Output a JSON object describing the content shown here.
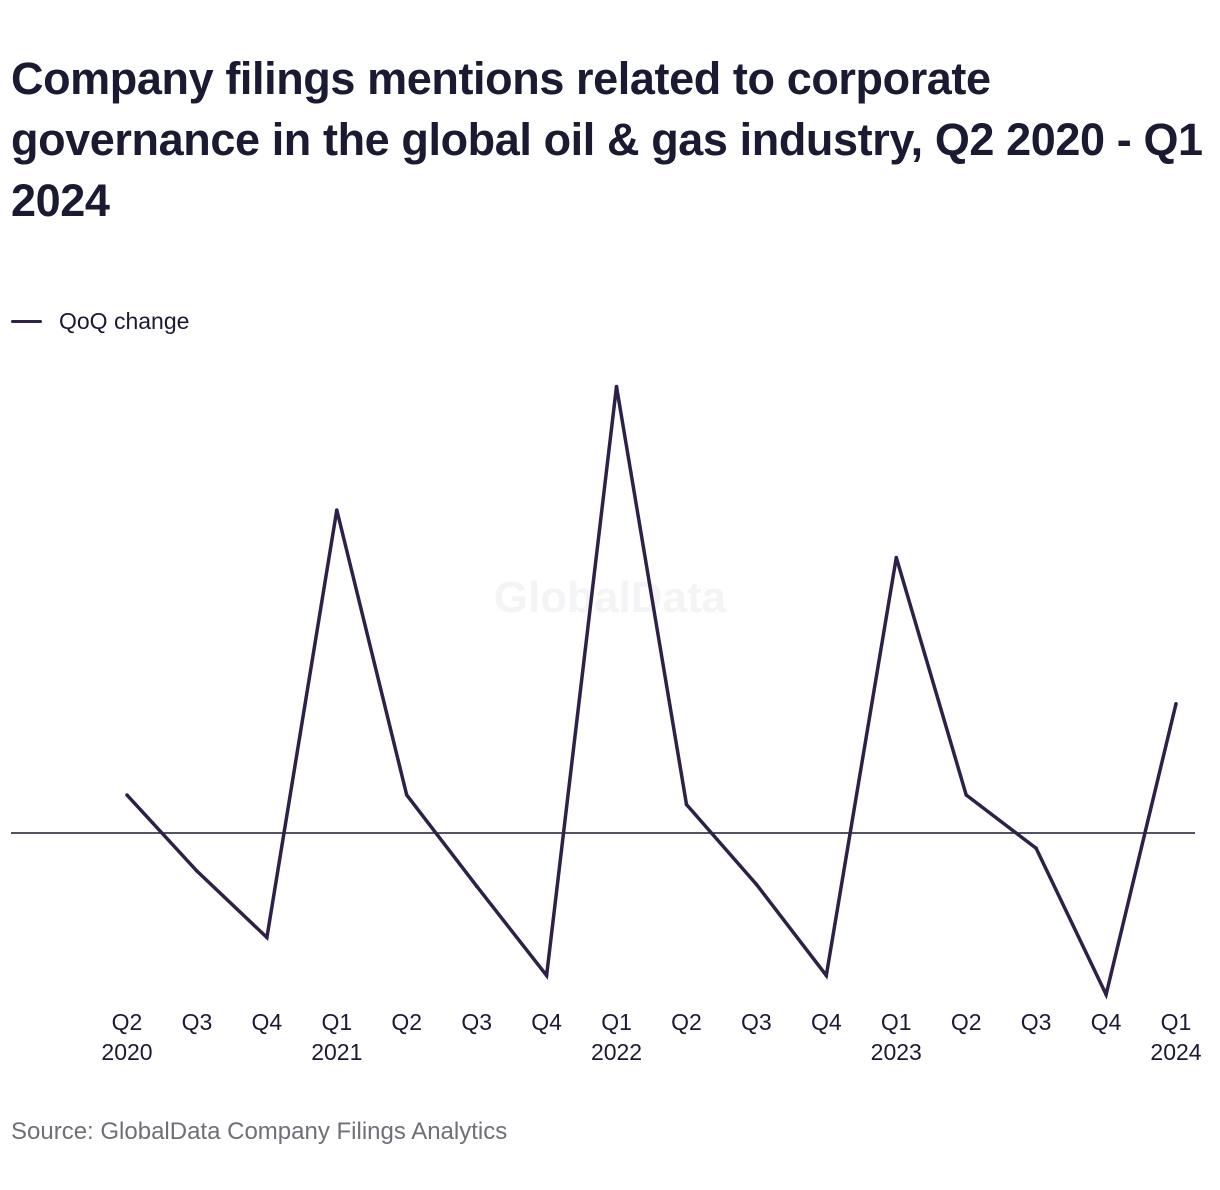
{
  "title": "Company filings mentions related to corporate governance in the global oil & gas industry, Q2 2020 - Q1 2024",
  "legend": {
    "label": "QoQ change",
    "color": "#2e2148"
  },
  "watermark": "GlobalData",
  "source": "Source: GlobalData Company Filings Analytics",
  "colors": {
    "line": "#2e2148",
    "baseline": "#1b1a33",
    "text": "#1b1a33",
    "source_text": "#6f6f77",
    "watermark": "#f4f4f6"
  },
  "chart_data": {
    "type": "line",
    "title": "Company filings mentions related to corporate governance in the global oil & gas industry, Q2 2020 - Q1 2024",
    "xlabel": "",
    "ylabel": "",
    "y_axis_labels": false,
    "grid": false,
    "legend_placement": "top-left",
    "baseline": 0,
    "ylim": [
      -9,
      25
    ],
    "categories": [
      [
        "Q2",
        "2020"
      ],
      [
        "Q3",
        ""
      ],
      [
        "Q4",
        ""
      ],
      [
        "Q1",
        "2021"
      ],
      [
        "Q2",
        ""
      ],
      [
        "Q3",
        ""
      ],
      [
        "Q4",
        ""
      ],
      [
        "Q1",
        "2022"
      ],
      [
        "Q2",
        ""
      ],
      [
        "Q3",
        ""
      ],
      [
        "Q4",
        ""
      ],
      [
        "Q1",
        "2023"
      ],
      [
        "Q2",
        ""
      ],
      [
        "Q3",
        ""
      ],
      [
        "Q4",
        ""
      ],
      [
        "Q1",
        "2024"
      ]
    ],
    "series": [
      {
        "name": "QoQ change",
        "color": "#2e2148",
        "values": [
          2.0,
          -2.0,
          -5.5,
          17.0,
          2.0,
          -2.8,
          -7.5,
          23.5,
          1.5,
          -2.7,
          -7.5,
          14.5,
          2.0,
          -0.8,
          -8.5,
          6.8
        ]
      }
    ]
  }
}
